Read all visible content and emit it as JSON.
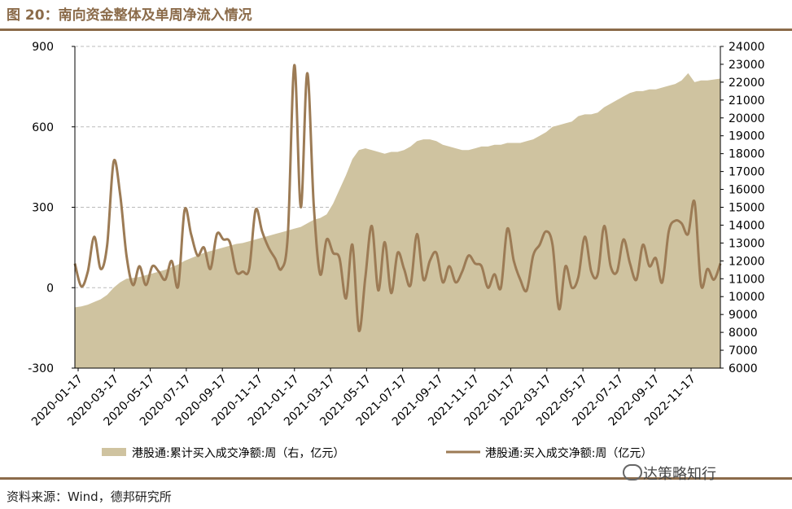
{
  "title": "图 20：南向资金整体及单周净流入情况",
  "source": "资料来源：Wind，德邦研究所",
  "watermark": "达策略知行",
  "colors": {
    "brand": "#8b6b4a",
    "area": "#cfc3a0",
    "line": "#9c7b55"
  },
  "chart_data": {
    "type": "area+line",
    "x_ticks": [
      "2020-01-17",
      "2020-03-17",
      "2020-05-17",
      "2020-07-17",
      "2020-09-17",
      "2020-11-17",
      "2021-01-17",
      "2021-03-17",
      "2021-05-17",
      "2021-07-17",
      "2021-09-17",
      "2021-11-17",
      "2022-01-17",
      "2022-03-17",
      "2022-05-17",
      "2022-07-17",
      "2022-09-17",
      "2022-11-17"
    ],
    "y_left": {
      "min": -300,
      "max": 900,
      "ticks": [
        -300,
        0,
        300,
        600,
        900
      ]
    },
    "y_right": {
      "min": 6000,
      "max": 24000,
      "ticks": [
        6000,
        7000,
        8000,
        9000,
        10000,
        11000,
        12000,
        13000,
        14000,
        15000,
        16000,
        17000,
        18000,
        19000,
        20000,
        21000,
        22000,
        23000,
        24000
      ]
    },
    "grid": "horizontal dashed",
    "legend_position": "bottom",
    "series": [
      {
        "name": "港股通:累计买入成交净额:周（右，亿元）",
        "axis": "right",
        "type": "area",
        "values": [
          9400,
          9450,
          9550,
          9700,
          9850,
          10100,
          10500,
          10800,
          11000,
          11050,
          11100,
          11200,
          11300,
          11400,
          11500,
          11650,
          11800,
          12000,
          12150,
          12300,
          12450,
          12550,
          12650,
          12750,
          12850,
          12950,
          13000,
          13100,
          13200,
          13300,
          13400,
          13500,
          13600,
          13700,
          13800,
          13900,
          14100,
          14300,
          14400,
          14600,
          15200,
          16000,
          16800,
          17700,
          18200,
          18300,
          18200,
          18100,
          18000,
          18100,
          18100,
          18200,
          18400,
          18700,
          18800,
          18800,
          18700,
          18500,
          18400,
          18300,
          18200,
          18200,
          18300,
          18400,
          18400,
          18500,
          18500,
          18600,
          18600,
          18600,
          18700,
          18800,
          19000,
          19200,
          19500,
          19600,
          19700,
          19800,
          20100,
          20200,
          20200,
          20300,
          20600,
          20800,
          21000,
          21200,
          21400,
          21500,
          21500,
          21600,
          21600,
          21700,
          21800,
          21900,
          22100,
          22500,
          22000,
          22100,
          22100,
          22150,
          22200
        ]
      },
      {
        "name": "港股通:买入成交净额:周（亿元）",
        "axis": "left",
        "type": "line",
        "values": [
          90,
          5,
          60,
          190,
          70,
          160,
          470,
          350,
          120,
          10,
          80,
          10,
          80,
          60,
          30,
          100,
          5,
          290,
          200,
          120,
          150,
          70,
          200,
          180,
          170,
          60,
          60,
          70,
          290,
          210,
          150,
          110,
          70,
          200,
          830,
          300,
          800,
          310,
          50,
          180,
          130,
          110,
          -40,
          160,
          -160,
          40,
          230,
          -10,
          170,
          -20,
          130,
          70,
          10,
          200,
          30,
          100,
          130,
          20,
          80,
          20,
          60,
          120,
          90,
          80,
          0,
          50,
          0,
          220,
          100,
          30,
          -10,
          120,
          160,
          210,
          160,
          -80,
          80,
          0,
          40,
          190,
          60,
          50,
          230,
          80,
          60,
          180,
          90,
          30,
          160,
          80,
          110,
          20,
          210,
          250,
          240,
          200,
          320,
          10,
          70,
          30,
          90
        ]
      }
    ]
  }
}
